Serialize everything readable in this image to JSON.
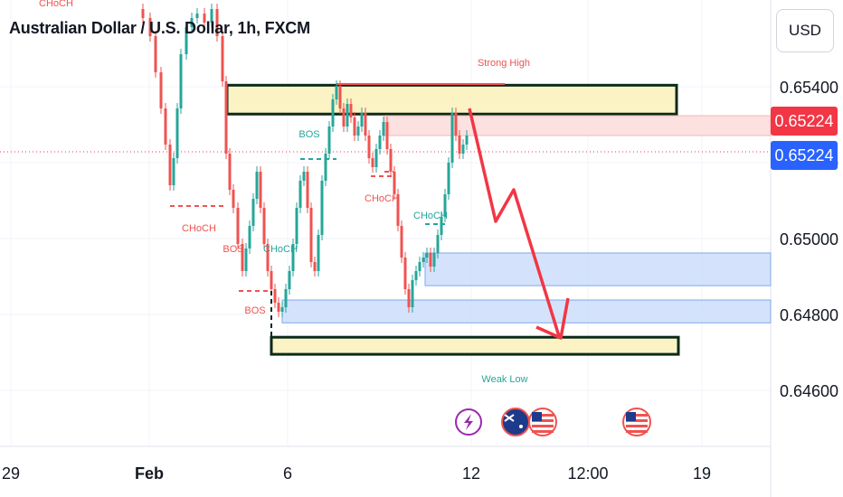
{
  "header": {
    "title": "Australian Dollar / U.S. Dollar, 1h, FXCM"
  },
  "currency_button": {
    "label": "USD"
  },
  "price_tags": {
    "upper": "0.65224",
    "lower": "0.65224"
  },
  "colors": {
    "up": "#26a69a",
    "down": "#ef5350",
    "arrow": "#f23645",
    "supply_fill": "#fcf3c5",
    "demand_fill": "#c9dcfa",
    "tag_red": "#f23645",
    "tag_blue": "#2962ff"
  },
  "chart_data": {
    "type": "candlestick",
    "title": "Australian Dollar / U.S. Dollar, 1h, FXCM",
    "yaxis": {
      "labels": [
        "0.65400",
        "0.65200",
        "0.65000",
        "0.64800",
        "0.64600"
      ],
      "ylim": [
        0.6455,
        0.6557
      ],
      "side": "right"
    },
    "xaxis": {
      "labels": [
        "29",
        "Feb",
        "6",
        "12",
        "12:00",
        "19"
      ]
    },
    "current_price": 0.65224,
    "annotations": [
      "CHoCH",
      "CHoCH",
      "BOS",
      "BOS",
      "CHoCH",
      "BOS",
      "CHoCH",
      "CHoCH"
    ],
    "zones": [
      {
        "label": "Strong High",
        "kind": "supply",
        "from": 0.65328,
        "to": 0.65404
      },
      {
        "label": "Weak Low",
        "kind": "demand",
        "from": 0.64695,
        "to": 0.6474
      },
      {
        "label": "",
        "kind": "demand",
        "from": 0.64876,
        "to": 0.64962
      },
      {
        "label": "",
        "kind": "demand",
        "from": 0.64778,
        "to": 0.64838
      }
    ],
    "events": [
      "lightning",
      "AUD",
      "USD",
      "USD"
    ]
  }
}
